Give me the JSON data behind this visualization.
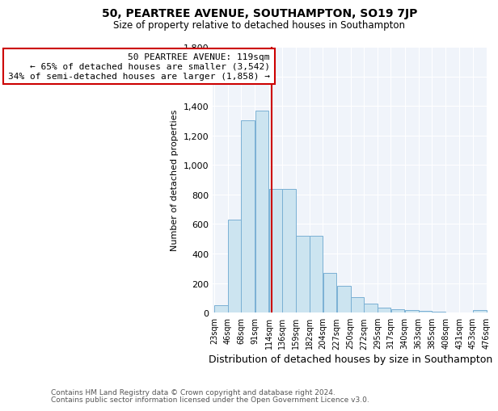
{
  "title1": "50, PEARTREE AVENUE, SOUTHAMPTON, SO19 7JP",
  "title2": "Size of property relative to detached houses in Southampton",
  "xlabel": "Distribution of detached houses by size in Southampton",
  "ylabel": "Number of detached properties",
  "annotation_line1": "50 PEARTREE AVENUE: 119sqm",
  "annotation_line2": "← 65% of detached houses are smaller (3,542)",
  "annotation_line3": "34% of semi-detached houses are larger (1,858) →",
  "property_size": 119,
  "footer1": "Contains HM Land Registry data © Crown copyright and database right 2024.",
  "footer2": "Contains public sector information licensed under the Open Government Licence v3.0.",
  "bins": [
    23,
    46,
    68,
    91,
    114,
    136,
    159,
    182,
    204,
    227,
    250,
    272,
    295,
    317,
    340,
    363,
    385,
    408,
    431,
    453,
    476
  ],
  "counts": [
    50,
    630,
    1300,
    1370,
    840,
    840,
    520,
    520,
    270,
    180,
    105,
    60,
    35,
    25,
    15,
    10,
    5,
    0,
    0,
    15,
    0
  ],
  "bar_color": "#cce4f0",
  "bar_edge_color": "#7ab0d4",
  "marker_color": "#cc0000",
  "annotation_box_color": "#cc0000",
  "ylim": [
    0,
    1800
  ],
  "yticks": [
    0,
    200,
    400,
    600,
    800,
    1000,
    1200,
    1400,
    1600,
    1800
  ],
  "bg_color": "#f0f4fa"
}
